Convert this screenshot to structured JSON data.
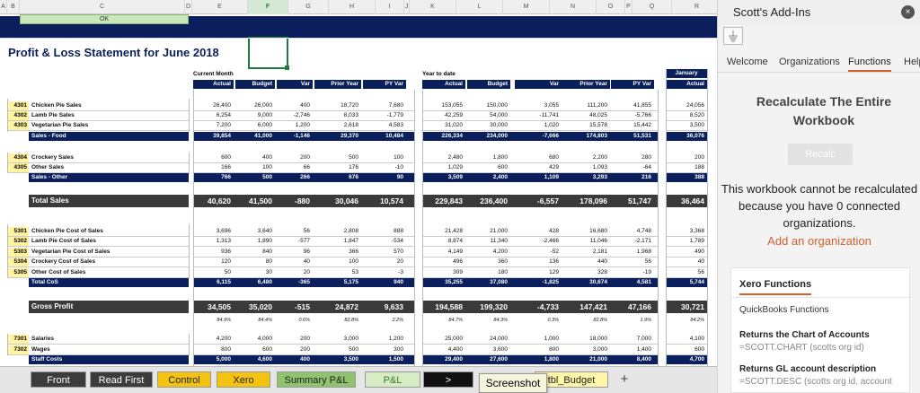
{
  "colors": {
    "navy": "#0b1f5c",
    "dark_row": "#3a3a3a",
    "code_yellow": "#fff3a0",
    "accent": "#d3602b"
  },
  "col_headers": [
    "A",
    "B",
    "C",
    "D",
    "E",
    "F",
    "G",
    "H",
    "I",
    "J",
    "K",
    "L",
    "M",
    "N",
    "O",
    "P",
    "Q",
    "R"
  ],
  "ok_label": "OK",
  "title": "Profit & Loss Statement for June 2018",
  "section_current": "Current Month",
  "section_ytd": "Year to date",
  "section_jan": "January",
  "headers": [
    "Actual",
    "Budget",
    "Var",
    "Prior Year",
    "PY Var"
  ],
  "header_jan": "Actual",
  "rows": [
    {
      "code": "4301",
      "label": "Chicken Pie Sales",
      "cm": [
        "26,400",
        "26,000",
        "400",
        "18,720",
        "7,680"
      ],
      "ytd": [
        "153,055",
        "150,000",
        "3,055",
        "111,200",
        "41,855"
      ],
      "jan": "24,056"
    },
    {
      "code": "4302",
      "label": "Lamb Pie Sales",
      "cm": [
        "6,254",
        "9,000",
        "-2,746",
        "8,033",
        "-1,779"
      ],
      "ytd": [
        "42,259",
        "54,000",
        "-11,741",
        "48,025",
        "-5,766"
      ],
      "jan": "8,520"
    },
    {
      "code": "4303",
      "label": "Vegetarian Pie Sales",
      "cm": [
        "7,200",
        "6,000",
        "1,200",
        "2,618",
        "4,583"
      ],
      "ytd": [
        "31,020",
        "30,000",
        "1,020",
        "15,578",
        "15,442"
      ],
      "jan": "3,500"
    },
    {
      "code": "",
      "label": "Sales - Food",
      "cm": [
        "39,854",
        "41,000",
        "-1,146",
        "29,370",
        "10,484"
      ],
      "ytd": [
        "226,334",
        "234,000",
        "-7,666",
        "174,803",
        "51,531"
      ],
      "jan": "36,076"
    },
    {
      "code": "4304",
      "label": "Crockery Sales",
      "cm": [
        "600",
        "400",
        "200",
        "500",
        "100"
      ],
      "ytd": [
        "2,480",
        "1,800",
        "680",
        "2,200",
        "280"
      ],
      "jan": "200"
    },
    {
      "code": "4305",
      "label": "Other Sales",
      "cm": [
        "166",
        "100",
        "66",
        "176",
        "-10"
      ],
      "ytd": [
        "1,029",
        "600",
        "429",
        "1,093",
        "-64"
      ],
      "jan": "188"
    },
    {
      "code": "",
      "label": "Sales - Other",
      "cm": [
        "766",
        "500",
        "266",
        "676",
        "90"
      ],
      "ytd": [
        "3,509",
        "2,400",
        "1,109",
        "3,293",
        "216"
      ],
      "jan": "388"
    },
    {
      "code": "",
      "label": "Total Sales",
      "cm": [
        "40,620",
        "41,500",
        "-880",
        "30,046",
        "10,574"
      ],
      "ytd": [
        "229,843",
        "236,400",
        "-6,557",
        "178,096",
        "51,747"
      ],
      "jan": "36,464"
    },
    {
      "code": "5301",
      "label": "Chicken Pie Cost of Sales",
      "cm": [
        "3,696",
        "3,640",
        "56",
        "2,808",
        "888"
      ],
      "ytd": [
        "21,428",
        "21,000",
        "428",
        "16,680",
        "4,748"
      ],
      "jan": "3,368"
    },
    {
      "code": "5302",
      "label": "Lamb Pie Cost of Sales",
      "cm": [
        "1,313",
        "1,890",
        "-577",
        "1,847",
        "-534"
      ],
      "ytd": [
        "8,874",
        "11,340",
        "-2,466",
        "11,046",
        "-2,171"
      ],
      "jan": "1,789"
    },
    {
      "code": "5303",
      "label": "Vegetarian Pie Cost of Sales",
      "cm": [
        "936",
        "840",
        "96",
        "366",
        "570"
      ],
      "ytd": [
        "4,149",
        "4,200",
        "-52",
        "2,181",
        "1,968"
      ],
      "jan": "490"
    },
    {
      "code": "5304",
      "label": "Crockery Cost of Sales",
      "cm": [
        "120",
        "80",
        "40",
        "100",
        "20"
      ],
      "ytd": [
        "496",
        "360",
        "136",
        "440",
        "56"
      ],
      "jan": "40"
    },
    {
      "code": "5305",
      "label": "Other Cost of Sales",
      "cm": [
        "50",
        "30",
        "20",
        "53",
        "-3"
      ],
      "ytd": [
        "309",
        "180",
        "129",
        "328",
        "-19"
      ],
      "jan": "56"
    },
    {
      "code": "",
      "label": "Total CoS",
      "cm": [
        "6,115",
        "6,480",
        "-365",
        "5,175",
        "940"
      ],
      "ytd": [
        "35,255",
        "37,080",
        "-1,825",
        "30,674",
        "4,581"
      ],
      "jan": "5,744"
    },
    {
      "code": "",
      "label": "Gross Profit",
      "cm": [
        "34,505",
        "35,020",
        "-515",
        "24,872",
        "9,633"
      ],
      "ytd": [
        "194,588",
        "199,320",
        "-4,733",
        "147,421",
        "47,166"
      ],
      "jan": "30,721"
    },
    {
      "code": "",
      "label": "",
      "cm": [
        "84.9%",
        "84.4%",
        "0.6%",
        "82.8%",
        "2.2%"
      ],
      "ytd": [
        "84.7%",
        "84.3%",
        "0.3%",
        "82.8%",
        "1.9%"
      ],
      "jan": "84.2%"
    },
    {
      "code": "7301",
      "label": "Salaries",
      "cm": [
        "4,200",
        "4,000",
        "200",
        "3,000",
        "1,200"
      ],
      "ytd": [
        "25,000",
        "24,000",
        "1,000",
        "18,000",
        "7,000"
      ],
      "jan": "4,100"
    },
    {
      "code": "7302",
      "label": "Wages",
      "cm": [
        "800",
        "600",
        "200",
        "500",
        "300"
      ],
      "ytd": [
        "4,400",
        "3,600",
        "800",
        "3,000",
        "1,400"
      ],
      "jan": "600"
    },
    {
      "code": "",
      "label": "Staff Costs",
      "cm": [
        "5,000",
        "4,600",
        "400",
        "3,500",
        "1,500"
      ],
      "ytd": [
        "29,400",
        "27,600",
        "1,800",
        "21,000",
        "8,400"
      ],
      "jan": "4,700"
    }
  ],
  "tabs": [
    {
      "label": "Front",
      "bg": "#3c3c3c",
      "fg": "#ffffff"
    },
    {
      "label": "Read First",
      "bg": "#3c3c3c",
      "fg": "#ffffff"
    },
    {
      "label": "Control",
      "bg": "#f4c312",
      "fg": "#222222"
    },
    {
      "label": "Xero",
      "bg": "#f4c312",
      "fg": "#222222"
    },
    {
      "label": "Summary P&L",
      "bg": "#8fc36e",
      "fg": "#222222"
    },
    {
      "label": "P&L",
      "bg": "#d6ecc4",
      "fg": "#3a7a2a"
    },
    {
      "label": ">",
      "bg": "#111111",
      "fg": "#ffffff"
    },
    {
      "label": "tbl_Budget",
      "bg": "#fff6a8",
      "fg": "#222222"
    }
  ],
  "tab_add": "+",
  "tooltip": "Screenshot",
  "pane": {
    "title": "Scott's Add-Ins",
    "close": "×",
    "nav": [
      "Welcome",
      "Organizations",
      "Functions",
      "Help"
    ],
    "active_nav": "Functions",
    "recalc_title_1": "Recalculate The Entire",
    "recalc_title_2": "Workbook",
    "recalc_button": "Recalc",
    "msg_1": "This workbook cannot be recalculated",
    "msg_2": "because you have 0 connected",
    "msg_3": "organizations.",
    "add_org": "Add an organization",
    "card": {
      "tab_active": "Xero Functions",
      "tab_other": "QuickBooks Functions",
      "f1_title": "Returns the Chart of Accounts",
      "f1_sig": "=SCOTT.CHART (scotts org id)",
      "f2_title": "Returns GL account description",
      "f2_sig": "=SCOTT.DESC (scotts org id, account"
    }
  }
}
